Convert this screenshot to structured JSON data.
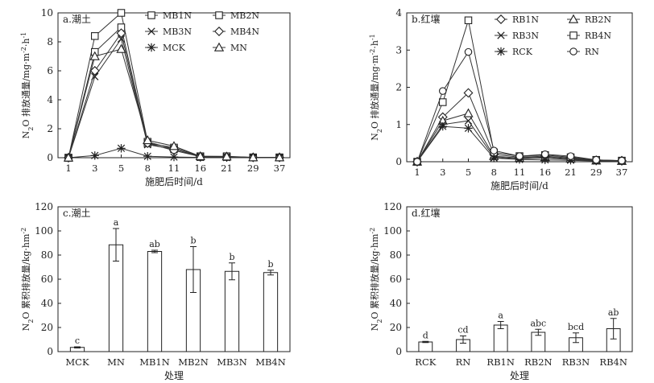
{
  "chart_data": [
    {
      "panel": "a.潮土",
      "type": "line",
      "xlabel": "施肥后时间/d",
      "ylabel": "N2O 排放通量/mg·m⁻²·h⁻¹",
      "ylabel_parts": [
        "N",
        "2",
        "O 排放通量/mg·m",
        "-2",
        "·h",
        "-1"
      ],
      "categories": [
        "1",
        "3",
        "5",
        "8",
        "11",
        "16",
        "21",
        "29",
        "37"
      ],
      "ylim": [
        0,
        10
      ],
      "yticks": [
        "0",
        "2",
        "4",
        "6",
        "8",
        "10"
      ],
      "legend": [
        "MB1N",
        "MB2N",
        "MB3N",
        "MB4N",
        "MCK",
        "MN"
      ],
      "series": [
        {
          "name": "MB1N",
          "marker": "square",
          "values": [
            0,
            8.4,
            10.0,
            1.1,
            0.6,
            0.05,
            0.05,
            0.02,
            0.02
          ]
        },
        {
          "name": "MB2N",
          "marker": "square",
          "values": [
            0,
            7.3,
            9.0,
            1.0,
            0.7,
            0.1,
            0.1,
            0.02,
            0.02
          ]
        },
        {
          "name": "MB3N",
          "marker": "x",
          "values": [
            0,
            5.6,
            8.2,
            0.9,
            0.6,
            0.08,
            0.06,
            0.02,
            0.01
          ]
        },
        {
          "name": "MB4N",
          "marker": "diamond",
          "values": [
            0,
            6.0,
            8.6,
            1.0,
            0.5,
            0.08,
            0.06,
            0.02,
            0.02
          ]
        },
        {
          "name": "MCK",
          "marker": "star",
          "values": [
            0,
            0.15,
            0.65,
            0.1,
            0.05,
            0.02,
            0.01,
            0.01,
            0.01
          ]
        },
        {
          "name": "MN",
          "marker": "triangle",
          "values": [
            0,
            7.0,
            7.5,
            1.2,
            0.8,
            0.1,
            0.08,
            0.02,
            0.02
          ]
        }
      ]
    },
    {
      "panel": "b.红壤",
      "type": "line",
      "xlabel": "施肥后时间/d",
      "ylabel": "N2O 排放通量/mg·m⁻²·h⁻¹",
      "ylabel_parts": [
        "N",
        "2",
        "O 排放通量/mg·m",
        "-2",
        "·h",
        "-1"
      ],
      "categories": [
        "1",
        "3",
        "5",
        "8",
        "11",
        "16",
        "21",
        "29",
        "37"
      ],
      "ylim": [
        0,
        4
      ],
      "yticks": [
        "0",
        "1",
        "2",
        "3",
        "4"
      ],
      "legend": [
        "RB1N",
        "RB2N",
        "RB3N",
        "RB4N",
        "RCK",
        "RN"
      ],
      "series": [
        {
          "name": "RB1N",
          "marker": "diamond",
          "values": [
            0,
            1.2,
            1.85,
            0.2,
            0.12,
            0.15,
            0.1,
            0.04,
            0.03
          ]
        },
        {
          "name": "RB2N",
          "marker": "triangle",
          "values": [
            0,
            1.1,
            1.3,
            0.15,
            0.1,
            0.12,
            0.08,
            0.03,
            0.02
          ]
        },
        {
          "name": "RB3N",
          "marker": "x",
          "values": [
            0,
            1.0,
            1.1,
            0.12,
            0.08,
            0.1,
            0.06,
            0.03,
            0.02
          ]
        },
        {
          "name": "RB4N",
          "marker": "square",
          "values": [
            0,
            1.6,
            3.8,
            0.25,
            0.15,
            0.18,
            0.12,
            0.05,
            0.03
          ]
        },
        {
          "name": "RCK",
          "marker": "star",
          "values": [
            0,
            0.95,
            0.9,
            0.1,
            0.06,
            0.05,
            0.04,
            0.02,
            0.01
          ]
        },
        {
          "name": "RN",
          "marker": "circle",
          "values": [
            0,
            1.9,
            2.95,
            0.3,
            0.15,
            0.2,
            0.15,
            0.05,
            0.03
          ]
        }
      ]
    },
    {
      "panel": "c.潮土",
      "type": "bar",
      "xlabel": "处理",
      "ylabel": "N2O 累积排放量/kg·hm⁻²",
      "ylabel_parts": [
        "N",
        "2",
        "O 累积排放量/kg·hm",
        "-2",
        "",
        ""
      ],
      "categories": [
        "MCK",
        "MN",
        "MB1N",
        "MB2N",
        "MB3N",
        "MB4N"
      ],
      "ylim": [
        0,
        120
      ],
      "yticks": [
        "0",
        "20",
        "40",
        "60",
        "80",
        "100",
        "120"
      ],
      "values": [
        3.5,
        88.5,
        83,
        68,
        66.5,
        65.5
      ],
      "errors": [
        0.5,
        13.5,
        1,
        19,
        7,
        2
      ],
      "letters": [
        "c",
        "a",
        "ab",
        "b",
        "b",
        "b"
      ]
    },
    {
      "panel": "d.红壤",
      "type": "bar",
      "xlabel": "处理",
      "ylabel": "N2O 累积排放量/kg·hm⁻²",
      "ylabel_parts": [
        "N",
        "2",
        "O 累积排放量/kg·hm",
        "-2",
        "",
        ""
      ],
      "categories": [
        "RCK",
        "RN",
        "RB1N",
        "RB2N",
        "RB3N",
        "RB4N"
      ],
      "ylim": [
        0,
        120
      ],
      "yticks": [
        "0",
        "20",
        "40",
        "60",
        "80",
        "100",
        "120"
      ],
      "values": [
        8,
        10,
        22,
        16,
        11.5,
        19
      ],
      "errors": [
        0.5,
        3,
        3,
        2.5,
        4,
        8.5
      ],
      "letters": [
        "d",
        "cd",
        "a",
        "abc",
        "bcd",
        "ab"
      ]
    }
  ]
}
